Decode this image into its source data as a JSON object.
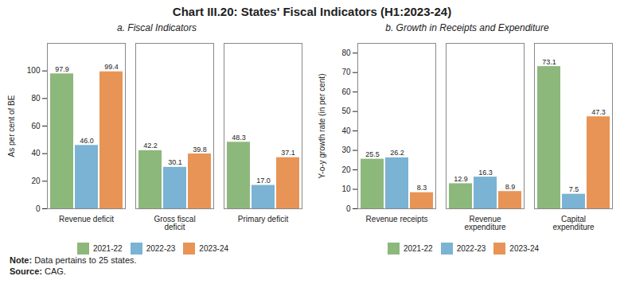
{
  "title": "Chart III.20: States' Fiscal Indicators (H1:2023-24)",
  "annotations": [
    "Note: Data pertains to 25 states.",
    "Source: CAG."
  ],
  "chart_data": [
    {
      "type": "bar",
      "title": "a. Fiscal Indicators",
      "ylabel": "As per cent of BE",
      "categories": [
        "Revenue deficit",
        "Gross fiscal deficit",
        "Primary deficit"
      ],
      "series": [
        {
          "name": "2021-22",
          "color": "#8cb87b",
          "values": [
            97.9,
            42.2,
            48.3
          ]
        },
        {
          "name": "2022-23",
          "color": "#7ab3d3",
          "values": [
            46.0,
            30.1,
            17.0
          ],
          "value_labels": [
            "46.0",
            "30.1",
            "17.0"
          ]
        },
        {
          "name": "2023-24",
          "color": "#e89456",
          "values": [
            99.4,
            39.8,
            37.1
          ]
        }
      ],
      "ylim": [
        0,
        120
      ],
      "yticks": [
        0,
        20,
        40,
        60,
        80,
        100
      ],
      "grid": false,
      "legend": "bottom",
      "data_labels": true
    },
    {
      "type": "bar",
      "title": "b. Growth in Receipts and Expenditure",
      "ylabel": "Y-o-y growth rate (in per cent)",
      "categories": [
        "Revenue receipts",
        "Revenue expenditure",
        "Capital expenditure"
      ],
      "series": [
        {
          "name": "2021-22",
          "color": "#8cb87b",
          "values": [
            25.5,
            12.9,
            73.1
          ]
        },
        {
          "name": "2022-23",
          "color": "#7ab3d3",
          "values": [
            26.2,
            16.3,
            7.5
          ]
        },
        {
          "name": "2023-24",
          "color": "#e89456",
          "values": [
            8.3,
            8.9,
            47.3
          ]
        }
      ],
      "ylim": [
        0,
        85
      ],
      "yticks": [
        0,
        10,
        20,
        30,
        40,
        50,
        60,
        70,
        80
      ],
      "grid": false,
      "legend": "bottom",
      "data_labels": true
    }
  ]
}
